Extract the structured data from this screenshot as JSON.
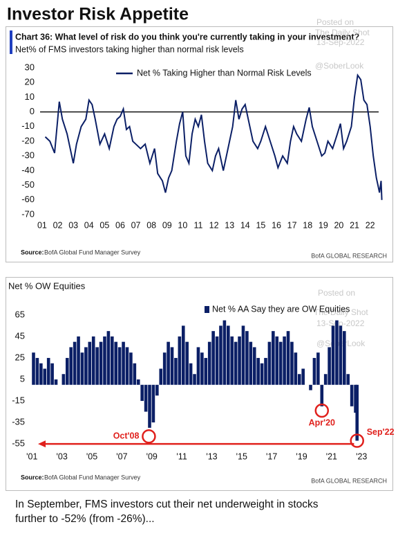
{
  "title": "Investor Risk Appetite",
  "chart_data": [
    {
      "type": "line",
      "title": "Chart 36: What level of risk do you think you're currently taking in your investment?",
      "subtitle": "Net% of FMS investors taking higher than normal risk levels",
      "watermark": [
        "Posted on",
        "The Daily Shot",
        "13-Sep-2022",
        "@SoberLook"
      ],
      "x": [
        2001.2,
        2001.5,
        2001.8,
        2002.0,
        2002.1,
        2002.3,
        2002.6,
        2002.8,
        2003.0,
        2003.2,
        2003.5,
        2003.8,
        2004.0,
        2004.2,
        2004.4,
        2004.7,
        2005.0,
        2005.3,
        2005.6,
        2005.8,
        2006.0,
        2006.2,
        2006.4,
        2006.6,
        2006.8,
        2007.0,
        2007.3,
        2007.6,
        2007.9,
        2008.2,
        2008.4,
        2008.7,
        2008.9,
        2009.1,
        2009.3,
        2009.6,
        2009.8,
        2010.0,
        2010.2,
        2010.4,
        2010.6,
        2010.8,
        2011.0,
        2011.2,
        2011.4,
        2011.6,
        2011.9,
        2012.1,
        2012.3,
        2012.6,
        2012.8,
        2013.0,
        2013.2,
        2013.4,
        2013.6,
        2013.8,
        2014.0,
        2014.2,
        2014.5,
        2014.8,
        2015.0,
        2015.3,
        2015.6,
        2015.9,
        2016.1,
        2016.4,
        2016.7,
        2016.9,
        2017.1,
        2017.3,
        2017.6,
        2017.9,
        2018.1,
        2018.3,
        2018.6,
        2018.9,
        2019.1,
        2019.3,
        2019.6,
        2019.9,
        2020.1,
        2020.3,
        2020.5,
        2020.8,
        2021.0,
        2021.2,
        2021.4,
        2021.6,
        2021.8,
        2022.0,
        2022.2,
        2022.4,
        2022.5,
        2022.6,
        2022.7,
        2022.75
      ],
      "series": [
        {
          "name": "Net % Taking Higher than Normal Risk Levels",
          "color": "#0b1f66",
          "values": [
            -17,
            -20,
            -28,
            -5,
            7,
            -5,
            -15,
            -25,
            -35,
            -22,
            -10,
            -5,
            8,
            5,
            -5,
            -22,
            -15,
            -25,
            -10,
            -5,
            -3,
            2,
            -12,
            -10,
            -20,
            -22,
            -25,
            -22,
            -35,
            -25,
            -42,
            -47,
            -55,
            -45,
            -40,
            -20,
            -8,
            0,
            -30,
            -35,
            -15,
            -5,
            -10,
            -2,
            -20,
            -35,
            -40,
            -30,
            -25,
            -40,
            -30,
            -20,
            -10,
            8,
            -5,
            2,
            5,
            -5,
            -20,
            -25,
            -20,
            -10,
            -20,
            -30,
            -38,
            -30,
            -35,
            -20,
            -10,
            -15,
            -20,
            -5,
            3,
            -10,
            -20,
            -30,
            -28,
            -20,
            -25,
            -15,
            -8,
            -25,
            -20,
            -10,
            10,
            25,
            22,
            8,
            5,
            -10,
            -30,
            -45,
            -50,
            -55,
            -47,
            -60
          ]
        }
      ],
      "xlim": [
        2000.87,
        2022.9
      ],
      "xticks": [
        {
          "value": 2001,
          "label": "01"
        },
        {
          "value": 2002,
          "label": "02"
        },
        {
          "value": 2003,
          "label": "03"
        },
        {
          "value": 2004,
          "label": "04"
        },
        {
          "value": 2005,
          "label": "05"
        },
        {
          "value": 2006,
          "label": "06"
        },
        {
          "value": 2007,
          "label": "07"
        },
        {
          "value": 2008,
          "label": "08"
        },
        {
          "value": 2009,
          "label": "09"
        },
        {
          "value": 2010,
          "label": "10"
        },
        {
          "value": 2011,
          "label": "11"
        },
        {
          "value": 2012,
          "label": "12"
        },
        {
          "value": 2013,
          "label": "13"
        },
        {
          "value": 2014,
          "label": "14"
        },
        {
          "value": 2015,
          "label": "15"
        },
        {
          "value": 2016,
          "label": "16"
        },
        {
          "value": 2017,
          "label": "17"
        },
        {
          "value": 2018,
          "label": "18"
        },
        {
          "value": 2019,
          "label": "19"
        },
        {
          "value": 2020,
          "label": "20"
        },
        {
          "value": 2021,
          "label": "21"
        },
        {
          "value": 2022,
          "label": "22"
        }
      ],
      "ylim": [
        -70,
        30
      ],
      "yticks": [
        30,
        20,
        10,
        0,
        -10,
        -20,
        -30,
        -40,
        -50,
        -60,
        -70
      ],
      "source": "Source:",
      "source_text": "BofA Global Fund Manager Survey",
      "credit": "BofA GLOBAL RESEARCH"
    },
    {
      "type": "bar",
      "title": "Net % OW Equities",
      "watermark": [
        "Posted on",
        "The Daily Shot",
        "13-Sep-2022",
        "@SoberLook"
      ],
      "x": [
        2001.1,
        2001.35,
        2001.6,
        2001.85,
        2002.1,
        2002.35,
        2002.6,
        2002.85,
        2003.1,
        2003.35,
        2003.6,
        2003.85,
        2004.1,
        2004.35,
        2004.6,
        2004.85,
        2005.1,
        2005.35,
        2005.6,
        2005.85,
        2006.1,
        2006.35,
        2006.6,
        2006.85,
        2007.1,
        2007.35,
        2007.6,
        2007.85,
        2008.1,
        2008.35,
        2008.6,
        2008.85,
        2009.1,
        2009.35,
        2009.6,
        2009.85,
        2010.1,
        2010.35,
        2010.6,
        2010.85,
        2011.1,
        2011.35,
        2011.6,
        2011.85,
        2012.1,
        2012.35,
        2012.6,
        2012.85,
        2013.1,
        2013.35,
        2013.6,
        2013.85,
        2014.1,
        2014.35,
        2014.6,
        2014.85,
        2015.1,
        2015.35,
        2015.6,
        2015.85,
        2016.1,
        2016.35,
        2016.6,
        2016.85,
        2017.1,
        2017.35,
        2017.6,
        2017.85,
        2018.1,
        2018.35,
        2018.6,
        2018.85,
        2019.1,
        2019.35,
        2019.6,
        2019.85,
        2020.1,
        2020.35,
        2020.6,
        2020.85,
        2021.1,
        2021.35,
        2021.6,
        2021.85,
        2022.1,
        2022.35,
        2022.6,
        2022.7
      ],
      "series": [
        {
          "name": "Net % AA Say they are OW Equities",
          "color": "#0b1f66",
          "values": [
            30,
            25,
            20,
            15,
            25,
            20,
            5,
            0,
            10,
            25,
            35,
            40,
            45,
            30,
            35,
            40,
            45,
            35,
            40,
            45,
            50,
            45,
            40,
            35,
            40,
            35,
            30,
            20,
            5,
            -15,
            -25,
            -40,
            -35,
            -10,
            15,
            30,
            40,
            35,
            25,
            45,
            55,
            40,
            20,
            10,
            35,
            30,
            25,
            40,
            50,
            45,
            55,
            60,
            55,
            45,
            40,
            45,
            55,
            50,
            40,
            35,
            25,
            20,
            25,
            40,
            50,
            45,
            40,
            45,
            50,
            40,
            30,
            10,
            15,
            0,
            -5,
            25,
            30,
            -20,
            10,
            35,
            55,
            60,
            55,
            50,
            10,
            -20,
            -26,
            -52
          ]
        }
      ],
      "xlim": [
        2000.8,
        2024.65
      ],
      "xticks": [
        {
          "value": 2001,
          "label": "'01"
        },
        {
          "value": 2003,
          "label": "'03"
        },
        {
          "value": 2005,
          "label": "'05"
        },
        {
          "value": 2007,
          "label": "'07"
        },
        {
          "value": 2009,
          "label": "'09"
        },
        {
          "value": 2011,
          "label": "'11"
        },
        {
          "value": 2013,
          "label": "'13"
        },
        {
          "value": 2015,
          "label": "'15"
        },
        {
          "value": 2017,
          "label": "'17"
        },
        {
          "value": 2019,
          "label": "'19"
        },
        {
          "value": 2021,
          "label": "'21"
        },
        {
          "value": 2023,
          "label": "'23"
        }
      ],
      "ylim": [
        -62,
        72
      ],
      "yticks": [
        65,
        45,
        25,
        5,
        -15,
        -35,
        -55
      ],
      "annotations": [
        {
          "text": "Oct'08",
          "x": 2008.8,
          "y": -48
        },
        {
          "text": "Apr'20",
          "x": 2020.35,
          "y": -24
        },
        {
          "text": "Sep'22",
          "x": 2022.7,
          "y": -52
        }
      ],
      "arrow": {
        "x": [
          2022.5,
          2001.4
        ],
        "y": -55
      },
      "annotation_color": "#e0201c",
      "source": "Source:",
      "source_text": "BofA Global Fund Manager Survey",
      "credit": "BofA GLOBAL RESEARCH"
    }
  ],
  "footnote": "In September, FMS investors cut their net underweight in stocks further to -52% (from -26%)..."
}
